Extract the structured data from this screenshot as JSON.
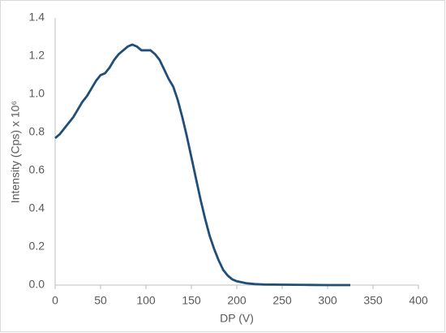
{
  "chart_data": {
    "type": "line",
    "x_label": "DP (V)",
    "y_label": "Intensity (Cps) x 10⁶",
    "x": [
      0,
      5,
      10,
      15,
      20,
      25,
      30,
      35,
      40,
      45,
      50,
      55,
      60,
      65,
      70,
      75,
      80,
      85,
      90,
      95,
      100,
      105,
      110,
      115,
      120,
      125,
      130,
      135,
      140,
      145,
      150,
      155,
      160,
      165,
      170,
      175,
      180,
      185,
      190,
      195,
      200,
      210,
      220,
      230,
      250,
      275,
      300,
      325
    ],
    "series": [
      {
        "color": "#1f4e79",
        "values": [
          0.77,
          0.79,
          0.82,
          0.85,
          0.88,
          0.92,
          0.96,
          0.99,
          1.03,
          1.07,
          1.1,
          1.11,
          1.14,
          1.18,
          1.21,
          1.23,
          1.25,
          1.26,
          1.25,
          1.23,
          1.23,
          1.23,
          1.21,
          1.18,
          1.13,
          1.08,
          1.04,
          0.97,
          0.88,
          0.78,
          0.67,
          0.56,
          0.45,
          0.35,
          0.26,
          0.19,
          0.13,
          0.08,
          0.05,
          0.03,
          0.02,
          0.01,
          0.005,
          0.003,
          0.002,
          0.001,
          0,
          0
        ]
      }
    ],
    "xlim": [
      0,
      400
    ],
    "xticks": [
      0,
      50,
      100,
      150,
      200,
      250,
      300,
      350,
      400
    ],
    "ylim": [
      0,
      1.4
    ],
    "yticks": [
      {
        "value": 0,
        "label": "0.0"
      },
      0.2,
      0.4,
      0.6,
      0.8,
      {
        "value": 1,
        "label": "1.0"
      },
      1.2,
      1.4
    ],
    "grid": false
  }
}
